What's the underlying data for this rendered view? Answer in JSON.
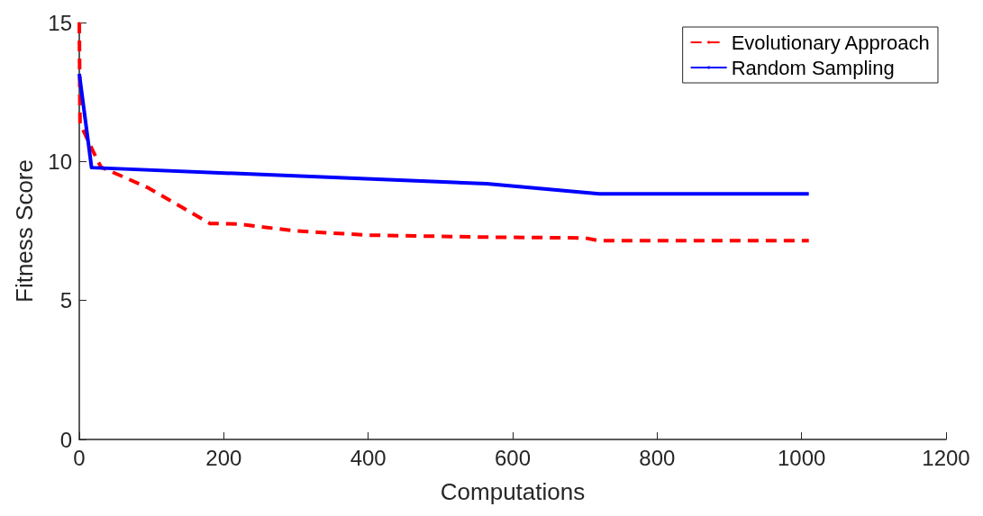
{
  "chart_data": {
    "type": "line",
    "xlabel": "Computations",
    "ylabel": "Fitness Score",
    "xlim": [
      0,
      1200
    ],
    "xticks": [
      0,
      200,
      400,
      600,
      800,
      1000,
      1200
    ],
    "ylim": [
      0,
      15
    ],
    "yticks": [
      0,
      5,
      10,
      15
    ],
    "grid": false,
    "legend": "top right",
    "marker": "none",
    "series": [
      {
        "name": "Evolutionary Approach",
        "color": "#ff0000",
        "line_style": "dashed",
        "x": [
          0,
          1,
          19,
          30,
          94,
          181,
          220,
          300,
          400,
          560,
          700,
          720,
          1010
        ],
        "values": [
          15,
          11.37,
          10.37,
          9.8,
          9.07,
          7.77,
          7.75,
          7.5,
          7.35,
          7.28,
          7.25,
          7.15,
          7.15
        ]
      },
      {
        "name": "Random Sampling",
        "color": "#0000ff",
        "line_style": "solid",
        "x": [
          0,
          17,
          564,
          720,
          1010
        ],
        "values": [
          13.15,
          9.78,
          9.2,
          8.84,
          8.84
        ]
      }
    ]
  }
}
